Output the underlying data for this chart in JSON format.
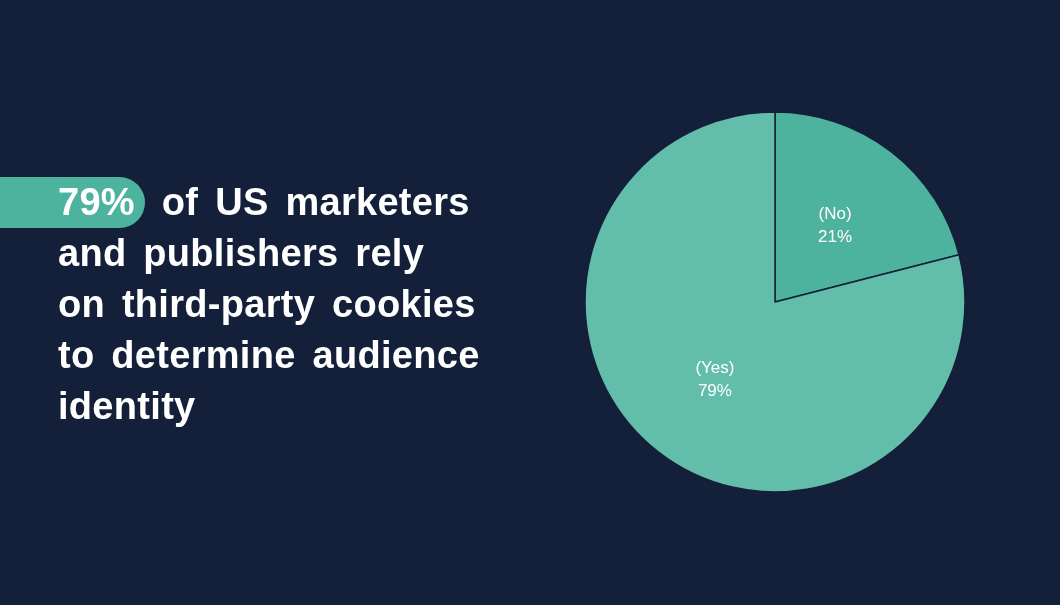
{
  "chart_data": {
    "type": "pie",
    "title": "79% of US marketers and publishers rely on third-party cookies to determine audience identity",
    "categories": [
      "(No)",
      "(Yes)"
    ],
    "values": [
      21,
      79
    ],
    "colors": [
      "#4db39e",
      "#62bdaa"
    ],
    "value_labels": [
      "21%",
      "79%"
    ],
    "legend": false
  }
}
